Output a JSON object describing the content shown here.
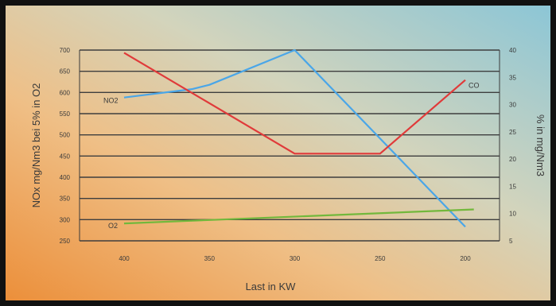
{
  "chart_data": {
    "type": "line",
    "title": "",
    "xlabel": "Last in KW",
    "ylabel_left": "NOx mg/Nm3 bei 5% in O2",
    "ylabel_right": "% in mg/Nm3",
    "x_categories": [
      "400",
      "350",
      "300",
      "250",
      "200"
    ],
    "x_values": [
      400,
      350,
      300,
      250,
      200
    ],
    "x_reversed": true,
    "left_axis": {
      "range": [
        250,
        700
      ],
      "ticks": [
        "700",
        "650",
        "600",
        "550",
        "500",
        "450",
        "400",
        "350",
        "300",
        "250"
      ]
    },
    "right_axis": {
      "range": [
        5,
        40
      ],
      "ticks": [
        "40",
        "35",
        "30",
        "25",
        "20",
        "15",
        "10",
        "5"
      ]
    },
    "grid": "horizontal",
    "series": [
      {
        "name": "NO2",
        "axis": "left",
        "color": "#4aa6e8",
        "x": [
          400,
          360,
          350,
          300,
          200
        ],
        "y": [
          588,
          608,
          618,
          700,
          283
        ]
      },
      {
        "name": "CO",
        "axis": "right",
        "color": "#e03a3a",
        "x": [
          400,
          300,
          250,
          200
        ],
        "y": [
          39.5,
          21.0,
          21.0,
          34.5
        ]
      },
      {
        "name": "O2",
        "axis": "left",
        "color": "#72b83c",
        "x": [
          400,
          195
        ],
        "y": [
          291,
          324
        ]
      }
    ]
  }
}
